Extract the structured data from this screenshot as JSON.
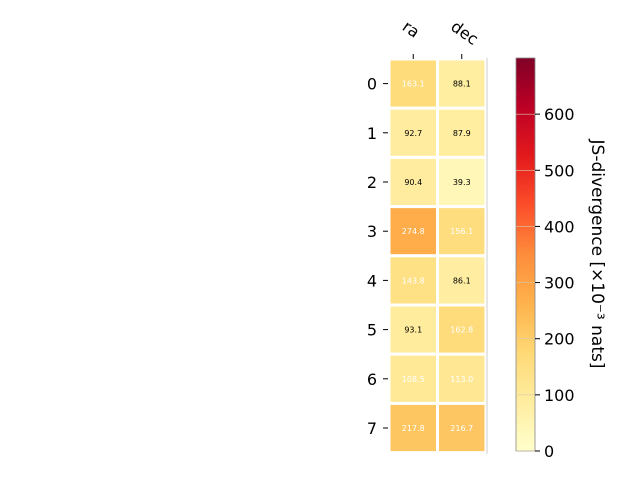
{
  "chart_data": {
    "type": "heatmap",
    "columns": [
      "ra",
      "dec"
    ],
    "rows": [
      "0",
      "1",
      "2",
      "3",
      "4",
      "5",
      "6",
      "7"
    ],
    "values": [
      [
        163.1,
        88.1
      ],
      [
        92.7,
        87.9
      ],
      [
        90.4,
        39.3
      ],
      [
        274.8,
        156.1
      ],
      [
        143.8,
        86.1
      ],
      [
        93.1,
        162.8
      ],
      [
        108.5,
        113.0
      ],
      [
        217.8,
        216.7
      ]
    ],
    "value_labels": [
      [
        "163.1",
        "88.1"
      ],
      [
        "92.7",
        "87.9"
      ],
      [
        "90.4",
        "39.3"
      ],
      [
        "274.8",
        "156.1"
      ],
      [
        "143.8",
        "86.1"
      ],
      [
        "93.1",
        "162.8"
      ],
      [
        "108.5",
        "113.0"
      ],
      [
        "217.8",
        "216.7"
      ]
    ],
    "colormap": "YlOrRd",
    "colorbar": {
      "label": "JS-divergence [×10⁻³ nats]",
      "range": [
        0,
        700
      ],
      "ticks": [
        0,
        100,
        200,
        300,
        400,
        500,
        600
      ]
    },
    "colors": {
      "cell_border": "#ffffff",
      "label_dark": "#000000",
      "label_light": "#ffffff"
    }
  }
}
